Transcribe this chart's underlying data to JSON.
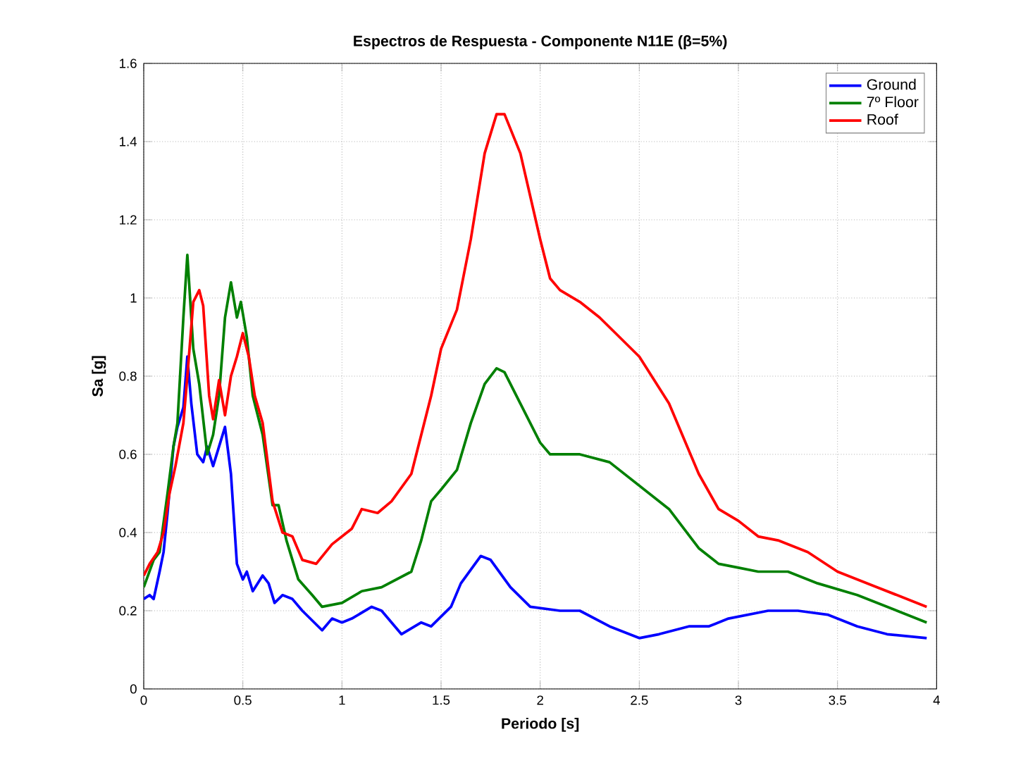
{
  "chart_data": {
    "type": "line",
    "title": "Espectros de Respuesta - Componente N11E (β=5%)",
    "xlabel": "Periodo [s]",
    "ylabel": "Sa [g]",
    "xlim": [
      0,
      4
    ],
    "ylim": [
      0,
      1.6
    ],
    "xticks": [
      0,
      0.5,
      1,
      1.5,
      2,
      2.5,
      3,
      3.5,
      4
    ],
    "yticks": [
      0,
      0.2,
      0.4,
      0.6,
      0.8,
      1,
      1.2,
      1.4,
      1.6
    ],
    "grid": true,
    "legend": "top right",
    "line_style": "solid",
    "marker": "none",
    "series": [
      {
        "name": "Ground",
        "color": "#0000ff",
        "x": [
          0,
          0.03,
          0.05,
          0.08,
          0.1,
          0.12,
          0.15,
          0.17,
          0.2,
          0.22,
          0.24,
          0.27,
          0.3,
          0.32,
          0.35,
          0.38,
          0.41,
          0.44,
          0.47,
          0.5,
          0.52,
          0.55,
          0.6,
          0.63,
          0.66,
          0.7,
          0.75,
          0.8,
          0.9,
          0.95,
          1.0,
          1.05,
          1.15,
          1.2,
          1.3,
          1.4,
          1.45,
          1.55,
          1.6,
          1.7,
          1.75,
          1.85,
          1.95,
          2.1,
          2.2,
          2.35,
          2.5,
          2.6,
          2.75,
          2.85,
          2.95,
          3.05,
          3.15,
          3.3,
          3.45,
          3.6,
          3.75,
          3.95
        ],
        "values": [
          0.23,
          0.24,
          0.23,
          0.3,
          0.35,
          0.45,
          0.62,
          0.67,
          0.72,
          0.85,
          0.73,
          0.6,
          0.58,
          0.62,
          0.57,
          0.62,
          0.67,
          0.55,
          0.32,
          0.28,
          0.3,
          0.25,
          0.29,
          0.27,
          0.22,
          0.24,
          0.23,
          0.2,
          0.15,
          0.18,
          0.17,
          0.18,
          0.21,
          0.2,
          0.14,
          0.17,
          0.16,
          0.21,
          0.27,
          0.34,
          0.33,
          0.26,
          0.21,
          0.2,
          0.2,
          0.16,
          0.13,
          0.14,
          0.16,
          0.16,
          0.18,
          0.19,
          0.2,
          0.2,
          0.19,
          0.16,
          0.14,
          0.13
        ]
      },
      {
        "name": "7º Floor",
        "color": "#008000",
        "x": [
          0,
          0.05,
          0.08,
          0.12,
          0.15,
          0.17,
          0.2,
          0.22,
          0.25,
          0.28,
          0.32,
          0.35,
          0.38,
          0.41,
          0.44,
          0.47,
          0.49,
          0.52,
          0.55,
          0.6,
          0.65,
          0.68,
          0.72,
          0.78,
          0.85,
          0.9,
          1.0,
          1.1,
          1.2,
          1.35,
          1.4,
          1.45,
          1.5,
          1.58,
          1.65,
          1.72,
          1.78,
          1.82,
          1.9,
          2.0,
          2.05,
          2.2,
          2.35,
          2.5,
          2.65,
          2.8,
          2.9,
          3.0,
          3.1,
          3.25,
          3.4,
          3.6,
          3.8,
          3.95
        ],
        "values": [
          0.26,
          0.33,
          0.35,
          0.5,
          0.62,
          0.68,
          0.95,
          1.11,
          0.87,
          0.78,
          0.6,
          0.65,
          0.75,
          0.95,
          1.04,
          0.95,
          0.99,
          0.9,
          0.75,
          0.65,
          0.47,
          0.47,
          0.38,
          0.28,
          0.24,
          0.21,
          0.22,
          0.25,
          0.26,
          0.3,
          0.38,
          0.48,
          0.51,
          0.56,
          0.68,
          0.78,
          0.82,
          0.81,
          0.73,
          0.63,
          0.6,
          0.6,
          0.58,
          0.52,
          0.46,
          0.36,
          0.32,
          0.31,
          0.3,
          0.3,
          0.27,
          0.24,
          0.2,
          0.17
        ]
      },
      {
        "name": "Roof",
        "color": "#ff0000",
        "x": [
          0,
          0.03,
          0.07,
          0.1,
          0.13,
          0.16,
          0.2,
          0.22,
          0.25,
          0.28,
          0.3,
          0.33,
          0.35,
          0.38,
          0.41,
          0.44,
          0.47,
          0.5,
          0.53,
          0.56,
          0.6,
          0.65,
          0.7,
          0.75,
          0.8,
          0.87,
          0.95,
          1.05,
          1.1,
          1.18,
          1.25,
          1.35,
          1.45,
          1.5,
          1.58,
          1.65,
          1.72,
          1.78,
          1.82,
          1.9,
          2.0,
          2.05,
          2.1,
          2.2,
          2.3,
          2.5,
          2.65,
          2.8,
          2.9,
          3.0,
          3.1,
          3.2,
          3.35,
          3.5,
          3.7,
          3.95
        ],
        "values": [
          0.29,
          0.32,
          0.35,
          0.4,
          0.5,
          0.57,
          0.68,
          0.8,
          0.99,
          1.02,
          0.98,
          0.75,
          0.69,
          0.79,
          0.7,
          0.8,
          0.85,
          0.91,
          0.85,
          0.75,
          0.68,
          0.48,
          0.4,
          0.39,
          0.33,
          0.32,
          0.37,
          0.41,
          0.46,
          0.45,
          0.48,
          0.55,
          0.75,
          0.87,
          0.97,
          1.15,
          1.37,
          1.47,
          1.47,
          1.37,
          1.15,
          1.05,
          1.02,
          0.99,
          0.95,
          0.85,
          0.73,
          0.55,
          0.46,
          0.43,
          0.39,
          0.38,
          0.35,
          0.3,
          0.26,
          0.21
        ]
      }
    ]
  }
}
